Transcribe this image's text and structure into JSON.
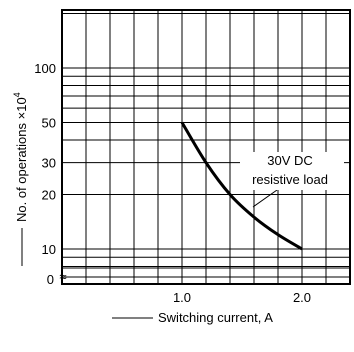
{
  "chart_data": {
    "type": "line",
    "xlabel": "Switching current, A",
    "ylabel": "No. of operations ×10",
    "ylabel_exponent": "4",
    "x_scale": "linear",
    "y_scale": "log",
    "xlim": [
      0,
      2.4
    ],
    "ylim": [
      1,
      300
    ],
    "x_ticks": [
      {
        "value": 1.0,
        "label": "1.0"
      },
      {
        "value": 2.0,
        "label": "2.0"
      }
    ],
    "y_ticks": [
      {
        "value": 100,
        "label": "100"
      },
      {
        "value": 50,
        "label": "50"
      },
      {
        "value": 30,
        "label": "30"
      },
      {
        "value": 20,
        "label": "20"
      },
      {
        "value": 10,
        "label": "10"
      }
    ],
    "y_zero_label": "0",
    "y_break_symbol": "≈",
    "grid": true,
    "series": [
      {
        "name": "30V DC resistive load",
        "x": [
          1.0,
          1.2,
          1.4,
          1.6,
          1.8,
          2.0
        ],
        "y": [
          50,
          30,
          20,
          15,
          12,
          10
        ]
      }
    ],
    "annotation": {
      "lines": [
        "30V DC",
        "resistive load"
      ]
    }
  }
}
